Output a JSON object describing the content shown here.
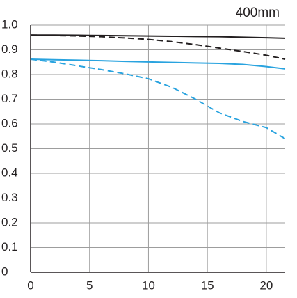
{
  "chart_data": {
    "type": "line",
    "title": "400mm",
    "x": [
      0,
      2,
      4,
      6,
      8,
      10,
      12,
      14,
      16,
      18,
      20,
      21.6
    ],
    "series": [
      {
        "color": "#231f20",
        "dash": false,
        "values": [
          0.96,
          0.96,
          0.959,
          0.958,
          0.957,
          0.956,
          0.955,
          0.954,
          0.953,
          0.951,
          0.949,
          0.947
        ]
      },
      {
        "color": "#231f20",
        "dash": true,
        "values": [
          0.96,
          0.958,
          0.956,
          0.953,
          0.948,
          0.942,
          0.933,
          0.921,
          0.907,
          0.893,
          0.878,
          0.862
        ]
      },
      {
        "color": "#29a3df",
        "dash": false,
        "values": [
          0.862,
          0.86,
          0.858,
          0.856,
          0.853,
          0.851,
          0.849,
          0.847,
          0.845,
          0.841,
          0.832,
          0.823
        ]
      },
      {
        "color": "#29a3df",
        "dash": true,
        "values": [
          0.862,
          0.85,
          0.835,
          0.82,
          0.803,
          0.783,
          0.748,
          0.7,
          0.645,
          0.61,
          0.585,
          0.54
        ]
      }
    ],
    "xlim": [
      0,
      21.6
    ],
    "xticks": [
      0,
      5,
      10,
      15,
      20
    ],
    "ylim": [
      0,
      1
    ],
    "yticks": [
      0,
      0.1,
      0.2,
      0.3,
      0.4,
      0.5,
      0.6,
      0.7,
      0.8,
      0.9,
      {
        "value": 1,
        "label": "1.0"
      }
    ],
    "grid": true
  }
}
